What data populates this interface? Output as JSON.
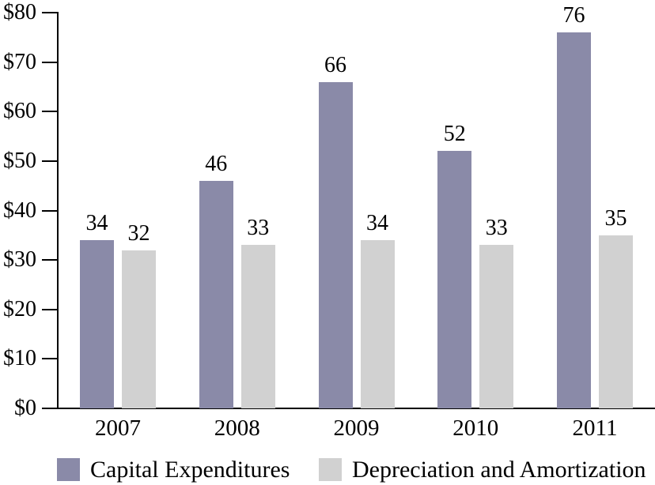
{
  "chart_data": {
    "type": "bar",
    "title": "",
    "categories": [
      "2007",
      "2008",
      "2009",
      "2010",
      "2011"
    ],
    "series": [
      {
        "name": "Capital Expenditures",
        "color": "#8a8aa8",
        "values": [
          34,
          46,
          66,
          52,
          76
        ]
      },
      {
        "name": "Depreciation and Amortization",
        "color": "#d1d1d1",
        "values": [
          32,
          33,
          34,
          33,
          35
        ]
      }
    ],
    "value_labels_shown": true,
    "ylim": [
      0,
      80
    ],
    "y_tick_step": 10,
    "y_tick_labels": [
      "$0",
      "$10",
      "$20",
      "$30",
      "$40",
      "$50",
      "$60",
      "$70",
      "$80"
    ],
    "xlabel": "",
    "ylabel": "",
    "grid": false,
    "legend_position": "bottom",
    "axis_color": "#000000",
    "background_color": "#ffffff",
    "text_color": "#000000"
  },
  "legend": {
    "items": [
      {
        "label": "Capital Expenditures",
        "color": "#8a8aa8"
      },
      {
        "label": "Depreciation and Amortization",
        "color": "#d1d1d1"
      }
    ]
  }
}
